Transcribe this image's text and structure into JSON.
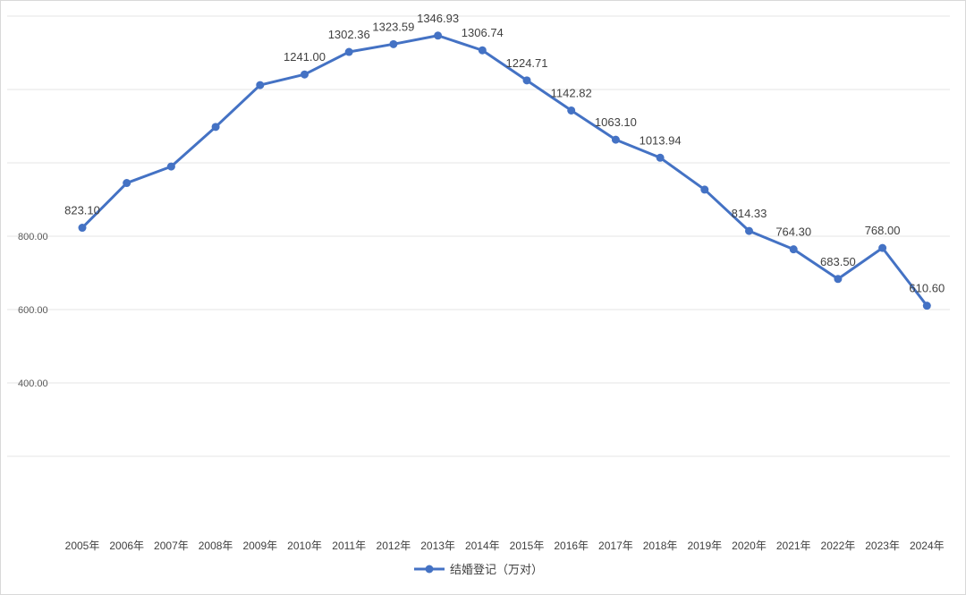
{
  "chart_data": {
    "type": "line",
    "title": "",
    "xlabel": "",
    "ylabel": "",
    "x": [
      "2005年",
      "2006年",
      "2007年",
      "2008年",
      "2009年",
      "2010年",
      "2011年",
      "2012年",
      "2013年",
      "2014年",
      "2015年",
      "2016年",
      "2017年",
      "2018年",
      "2019年",
      "2020年",
      "2021年",
      "2022年",
      "2023年",
      "2024年"
    ],
    "series": [
      {
        "name": "结婚登记（万对）",
        "values": [
          823.1,
          945.0,
          990.0,
          1098.0,
          1212.0,
          1241.0,
          1302.36,
          1323.59,
          1346.93,
          1306.74,
          1224.71,
          1142.82,
          1063.1,
          1013.94,
          927.0,
          814.33,
          764.3,
          683.5,
          768.0,
          610.6
        ],
        "data_labels": [
          "823.10",
          "",
          "",
          "",
          "",
          "1241.00",
          "1302.36",
          "1323.59",
          "1346.93",
          "1306.74",
          "1224.71",
          "1142.82",
          "1063.10",
          "1013.94",
          "",
          "814.33",
          "764.30",
          "683.50",
          "768.00",
          "610.60"
        ],
        "color": "#4472c4"
      }
    ],
    "yticks": [
      "400.00",
      "600.00",
      "800.00"
    ],
    "ylim": [
      200,
      1400
    ],
    "grid": true,
    "legend_position": "bottom"
  }
}
